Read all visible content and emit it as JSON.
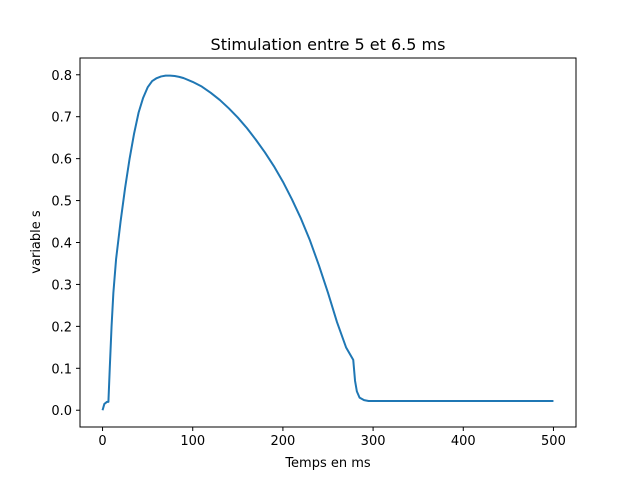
{
  "chart_data": {
    "type": "line",
    "title": "Stimulation entre 5 et 6.5 ms",
    "xlabel": "Temps en ms",
    "ylabel": "variable s",
    "xlim": [
      -25,
      525
    ],
    "ylim": [
      -0.04,
      0.84
    ],
    "xticks": [
      0,
      100,
      200,
      300,
      400,
      500
    ],
    "yticks": [
      0.0,
      0.1,
      0.2,
      0.3,
      0.4,
      0.5,
      0.6,
      0.7,
      0.8
    ],
    "xtick_labels": [
      "0",
      "100",
      "200",
      "300",
      "400",
      "500"
    ],
    "ytick_labels": [
      "0.0",
      "0.1",
      "0.2",
      "0.3",
      "0.4",
      "0.5",
      "0.6",
      "0.7",
      "0.8"
    ],
    "grid": false,
    "series": [
      {
        "color": "#1f77b4",
        "x": [
          0,
          2,
          5,
          6.5,
          8,
          10,
          12,
          15,
          20,
          25,
          30,
          35,
          40,
          45,
          50,
          55,
          60,
          65,
          70,
          75,
          80,
          85,
          90,
          100,
          110,
          120,
          130,
          140,
          150,
          160,
          170,
          180,
          190,
          200,
          210,
          220,
          230,
          240,
          250,
          260,
          270,
          278,
          280,
          282,
          285,
          290,
          295,
          300,
          320,
          350,
          400,
          450,
          500
        ],
        "y": [
          0.0,
          0.015,
          0.02,
          0.02,
          0.1,
          0.2,
          0.28,
          0.36,
          0.45,
          0.53,
          0.6,
          0.66,
          0.71,
          0.745,
          0.77,
          0.785,
          0.792,
          0.796,
          0.798,
          0.798,
          0.797,
          0.795,
          0.792,
          0.783,
          0.772,
          0.757,
          0.74,
          0.72,
          0.698,
          0.673,
          0.645,
          0.615,
          0.582,
          0.545,
          0.503,
          0.457,
          0.405,
          0.345,
          0.28,
          0.21,
          0.15,
          0.12,
          0.07,
          0.045,
          0.03,
          0.024,
          0.022,
          0.022,
          0.022,
          0.022,
          0.022,
          0.022,
          0.022
        ]
      }
    ]
  }
}
